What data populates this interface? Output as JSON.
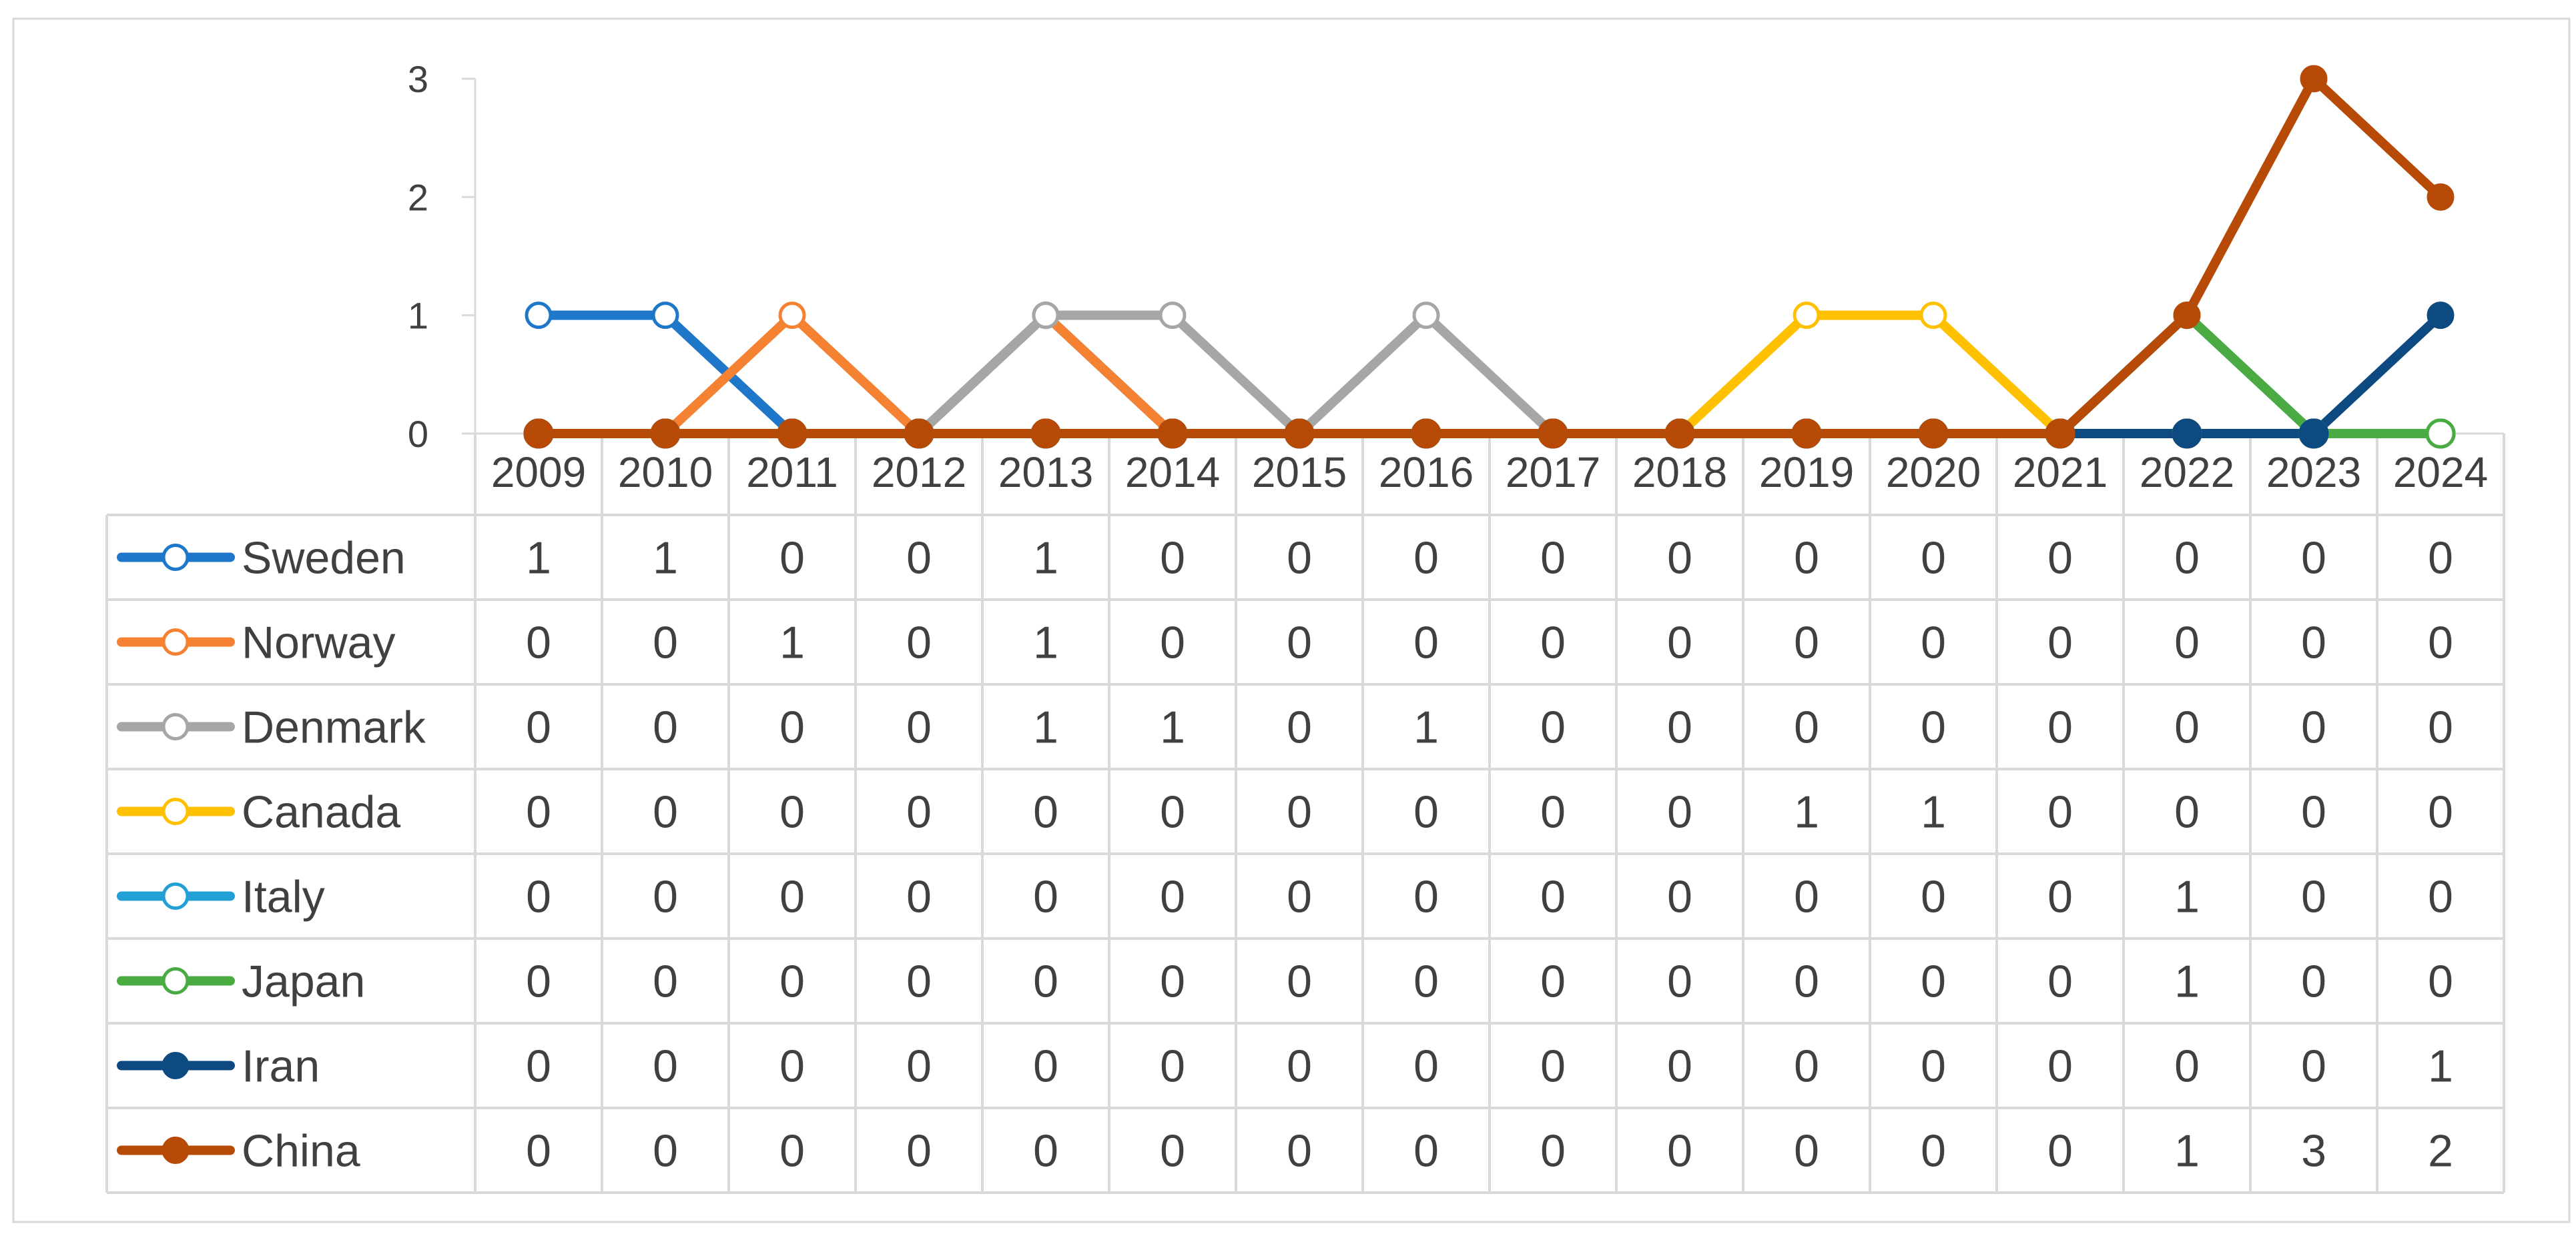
{
  "chart_data": {
    "type": "line",
    "title": "",
    "xlabel": "",
    "ylabel": "",
    "categories": [
      "2009",
      "2010",
      "2011",
      "2012",
      "2013",
      "2014",
      "2015",
      "2016",
      "2017",
      "2018",
      "2019",
      "2020",
      "2021",
      "2022",
      "2023",
      "2024"
    ],
    "ylim": [
      0,
      3
    ],
    "yticks": [
      0,
      1,
      2,
      3
    ],
    "grid": false,
    "legend": "data-table-left",
    "data_table": true,
    "series": [
      {
        "name": "Sweden",
        "color": "#1f77c9",
        "marker": "hollow",
        "values": [
          1,
          1,
          0,
          0,
          1,
          0,
          0,
          0,
          0,
          0,
          0,
          0,
          0,
          0,
          0,
          0
        ]
      },
      {
        "name": "Norway",
        "color": "#f58232",
        "marker": "hollow",
        "values": [
          0,
          0,
          1,
          0,
          1,
          0,
          0,
          0,
          0,
          0,
          0,
          0,
          0,
          0,
          0,
          0
        ]
      },
      {
        "name": "Denmark",
        "color": "#a6a6a6",
        "marker": "hollow",
        "values": [
          0,
          0,
          0,
          0,
          1,
          1,
          0,
          1,
          0,
          0,
          0,
          0,
          0,
          0,
          0,
          0
        ]
      },
      {
        "name": "Canada",
        "color": "#ffc000",
        "marker": "hollow",
        "values": [
          0,
          0,
          0,
          0,
          0,
          0,
          0,
          0,
          0,
          0,
          1,
          1,
          0,
          0,
          0,
          0
        ]
      },
      {
        "name": "Italy",
        "color": "#22a0d6",
        "marker": "hollow",
        "values": [
          0,
          0,
          0,
          0,
          0,
          0,
          0,
          0,
          0,
          0,
          0,
          0,
          0,
          1,
          0,
          0
        ]
      },
      {
        "name": "Japan",
        "color": "#4aab42",
        "marker": "hollow",
        "values": [
          0,
          0,
          0,
          0,
          0,
          0,
          0,
          0,
          0,
          0,
          0,
          0,
          0,
          1,
          0,
          0
        ]
      },
      {
        "name": "Iran",
        "color": "#0e4a82",
        "marker": "filled",
        "values": [
          0,
          0,
          0,
          0,
          0,
          0,
          0,
          0,
          0,
          0,
          0,
          0,
          0,
          0,
          0,
          1
        ]
      },
      {
        "name": "China",
        "color": "#b84a08",
        "marker": "filled",
        "values": [
          0,
          0,
          0,
          0,
          0,
          0,
          0,
          0,
          0,
          0,
          0,
          0,
          0,
          1,
          3,
          2
        ]
      }
    ]
  }
}
